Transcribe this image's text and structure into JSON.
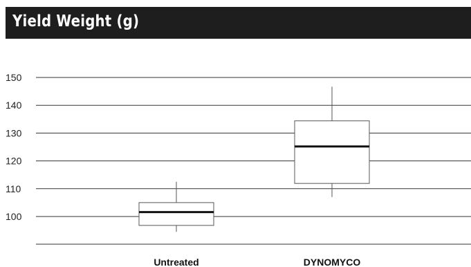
{
  "title": "Yield Weight (g)",
  "chart_data": {
    "type": "boxplot",
    "title": "Yield Weight (g)",
    "xlabel": "",
    "ylabel": "",
    "ylim": [
      90,
      150
    ],
    "yticks": [
      100,
      110,
      120,
      130,
      140,
      150
    ],
    "grid": true,
    "legend": "none",
    "categories": [
      "Untreated",
      "DYNOMYCO"
    ],
    "boxes": [
      {
        "category": "Untreated",
        "whisker_low": 94.5,
        "q1": 96.8,
        "median": 101.6,
        "q3": 105.0,
        "whisker_high": 112.5
      },
      {
        "category": "DYNOMYCO",
        "whisker_low": 107.0,
        "q1": 111.9,
        "median": 125.2,
        "q3": 134.4,
        "whisker_high": 146.7
      }
    ]
  },
  "colors": {
    "title_bg": "#1e1e1e",
    "title_text": "#ffffff",
    "grid": "#333333",
    "box_stroke": "#555555",
    "median": "#111111"
  }
}
